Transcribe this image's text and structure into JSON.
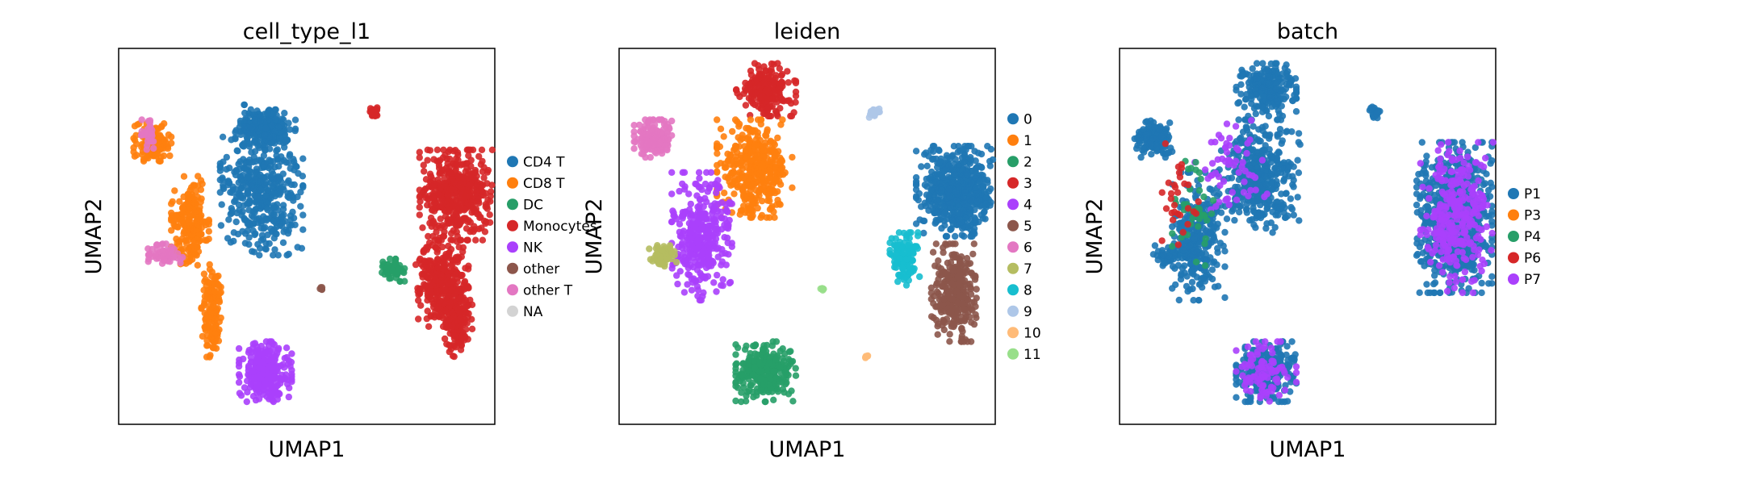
{
  "chart_data": [
    {
      "type": "scatter",
      "title": "cell_type_l1",
      "xlabel": "UMAP1",
      "ylabel": "UMAP2",
      "legend": "right",
      "grid": false,
      "series": [
        {
          "name": "CD4 T",
          "color": "#1f77b4"
        },
        {
          "name": "CD8 T",
          "color": "#ff7f0e"
        },
        {
          "name": "DC",
          "color": "#279e68"
        },
        {
          "name": "Monocytes",
          "color": "#d62728"
        },
        {
          "name": "NK",
          "color": "#aa40fc"
        },
        {
          "name": "other",
          "color": "#8c564b"
        },
        {
          "name": "other T",
          "color": "#e377c2"
        },
        {
          "name": "NA",
          "color": "#d3d3d3"
        }
      ],
      "clusters": [
        {
          "series": "CD4 T",
          "x": 0.39,
          "y": 0.21,
          "rx": 0.08,
          "ry": 0.06,
          "n": 220
        },
        {
          "series": "CD4 T",
          "x": 0.38,
          "y": 0.38,
          "rx": 0.11,
          "ry": 0.17,
          "n": 420
        },
        {
          "series": "CD8 T",
          "x": 0.09,
          "y": 0.25,
          "rx": 0.05,
          "ry": 0.05,
          "n": 150
        },
        {
          "series": "CD8 T",
          "x": 0.19,
          "y": 0.47,
          "rx": 0.05,
          "ry": 0.13,
          "n": 220
        },
        {
          "series": "CD8 T",
          "x": 0.25,
          "y": 0.7,
          "rx": 0.03,
          "ry": 0.13,
          "n": 150
        },
        {
          "series": "other T",
          "x": 0.08,
          "y": 0.23,
          "rx": 0.02,
          "ry": 0.04,
          "n": 30
        },
        {
          "series": "other T",
          "x": 0.12,
          "y": 0.55,
          "rx": 0.05,
          "ry": 0.03,
          "n": 60
        },
        {
          "series": "Monocytes",
          "x": 0.9,
          "y": 0.39,
          "rx": 0.1,
          "ry": 0.12,
          "n": 500
        },
        {
          "series": "Monocytes",
          "x": 0.86,
          "y": 0.62,
          "rx": 0.07,
          "ry": 0.12,
          "n": 320
        },
        {
          "series": "Monocytes",
          "x": 0.9,
          "y": 0.72,
          "rx": 0.04,
          "ry": 0.1,
          "n": 180
        },
        {
          "series": "Monocytes",
          "x": 0.68,
          "y": 0.17,
          "rx": 0.015,
          "ry": 0.015,
          "n": 25
        },
        {
          "series": "DC",
          "x": 0.73,
          "y": 0.59,
          "rx": 0.03,
          "ry": 0.03,
          "n": 60
        },
        {
          "series": "NK",
          "x": 0.39,
          "y": 0.86,
          "rx": 0.07,
          "ry": 0.08,
          "n": 300
        },
        {
          "series": "other",
          "x": 0.54,
          "y": 0.64,
          "rx": 0.005,
          "ry": 0.005,
          "n": 5
        }
      ]
    },
    {
      "type": "scatter",
      "title": "leiden",
      "xlabel": "UMAP1",
      "ylabel": "UMAP2",
      "legend": "right",
      "grid": false,
      "series": [
        {
          "name": "0",
          "color": "#1f77b4"
        },
        {
          "name": "1",
          "color": "#ff7f0e"
        },
        {
          "name": "2",
          "color": "#279e68"
        },
        {
          "name": "3",
          "color": "#d62728"
        },
        {
          "name": "4",
          "color": "#aa40fc"
        },
        {
          "name": "5",
          "color": "#8c564b"
        },
        {
          "name": "6",
          "color": "#e377c2"
        },
        {
          "name": "7",
          "color": "#b5bd61"
        },
        {
          "name": "8",
          "color": "#17becf"
        },
        {
          "name": "9",
          "color": "#aec7e8"
        },
        {
          "name": "10",
          "color": "#ffbb78"
        },
        {
          "name": "11",
          "color": "#98df8a"
        }
      ],
      "clusters": [
        {
          "series": "3",
          "x": 0.39,
          "y": 0.11,
          "rx": 0.08,
          "ry": 0.07,
          "n": 220
        },
        {
          "series": "1",
          "x": 0.36,
          "y": 0.32,
          "rx": 0.1,
          "ry": 0.13,
          "n": 380
        },
        {
          "series": "6",
          "x": 0.09,
          "y": 0.24,
          "rx": 0.05,
          "ry": 0.05,
          "n": 160
        },
        {
          "series": "4",
          "x": 0.22,
          "y": 0.5,
          "rx": 0.08,
          "ry": 0.17,
          "n": 340
        },
        {
          "series": "7",
          "x": 0.12,
          "y": 0.55,
          "rx": 0.04,
          "ry": 0.03,
          "n": 60
        },
        {
          "series": "0",
          "x": 0.9,
          "y": 0.38,
          "rx": 0.11,
          "ry": 0.12,
          "n": 550
        },
        {
          "series": "8",
          "x": 0.76,
          "y": 0.56,
          "rx": 0.04,
          "ry": 0.07,
          "n": 120
        },
        {
          "series": "5",
          "x": 0.89,
          "y": 0.65,
          "rx": 0.06,
          "ry": 0.13,
          "n": 300
        },
        {
          "series": "9",
          "x": 0.68,
          "y": 0.17,
          "rx": 0.015,
          "ry": 0.015,
          "n": 25
        },
        {
          "series": "2",
          "x": 0.39,
          "y": 0.86,
          "rx": 0.08,
          "ry": 0.08,
          "n": 320
        },
        {
          "series": "10",
          "x": 0.66,
          "y": 0.82,
          "rx": 0.005,
          "ry": 0.005,
          "n": 5
        },
        {
          "series": "11",
          "x": 0.54,
          "y": 0.64,
          "rx": 0.005,
          "ry": 0.005,
          "n": 5
        }
      ]
    },
    {
      "type": "scatter",
      "title": "batch",
      "xlabel": "UMAP1",
      "ylabel": "UMAP2",
      "legend": "right",
      "grid": false,
      "series": [
        {
          "name": "P1",
          "color": "#1f77b4"
        },
        {
          "name": "P3",
          "color": "#ff7f0e"
        },
        {
          "name": "P4",
          "color": "#279e68"
        },
        {
          "name": "P6",
          "color": "#d62728"
        },
        {
          "name": "P7",
          "color": "#aa40fc"
        }
      ],
      "clusters": [
        {
          "series": "P1",
          "x": 0.39,
          "y": 0.11,
          "rx": 0.08,
          "ry": 0.07,
          "n": 220
        },
        {
          "series": "P1",
          "x": 0.37,
          "y": 0.34,
          "rx": 0.11,
          "ry": 0.15,
          "n": 420
        },
        {
          "series": "P1",
          "x": 0.09,
          "y": 0.24,
          "rx": 0.05,
          "ry": 0.05,
          "n": 150
        },
        {
          "series": "P1",
          "x": 0.21,
          "y": 0.5,
          "rx": 0.07,
          "ry": 0.17,
          "n": 300
        },
        {
          "series": "P1",
          "x": 0.13,
          "y": 0.55,
          "rx": 0.04,
          "ry": 0.03,
          "n": 50
        },
        {
          "series": "P1",
          "x": 0.89,
          "y": 0.45,
          "rx": 0.1,
          "ry": 0.2,
          "n": 700
        },
        {
          "series": "P1",
          "x": 0.39,
          "y": 0.86,
          "rx": 0.08,
          "ry": 0.08,
          "n": 300
        },
        {
          "series": "P1",
          "x": 0.68,
          "y": 0.17,
          "rx": 0.015,
          "ry": 0.015,
          "n": 25
        },
        {
          "series": "P7",
          "x": 0.9,
          "y": 0.45,
          "rx": 0.1,
          "ry": 0.2,
          "n": 300
        },
        {
          "series": "P7",
          "x": 0.39,
          "y": 0.86,
          "rx": 0.08,
          "ry": 0.08,
          "n": 90
        },
        {
          "series": "P7",
          "x": 0.3,
          "y": 0.3,
          "rx": 0.1,
          "ry": 0.15,
          "n": 60
        },
        {
          "series": "P4",
          "x": 0.2,
          "y": 0.45,
          "rx": 0.06,
          "ry": 0.15,
          "n": 40
        },
        {
          "series": "P6",
          "x": 0.15,
          "y": 0.4,
          "rx": 0.06,
          "ry": 0.15,
          "n": 30
        }
      ]
    }
  ]
}
